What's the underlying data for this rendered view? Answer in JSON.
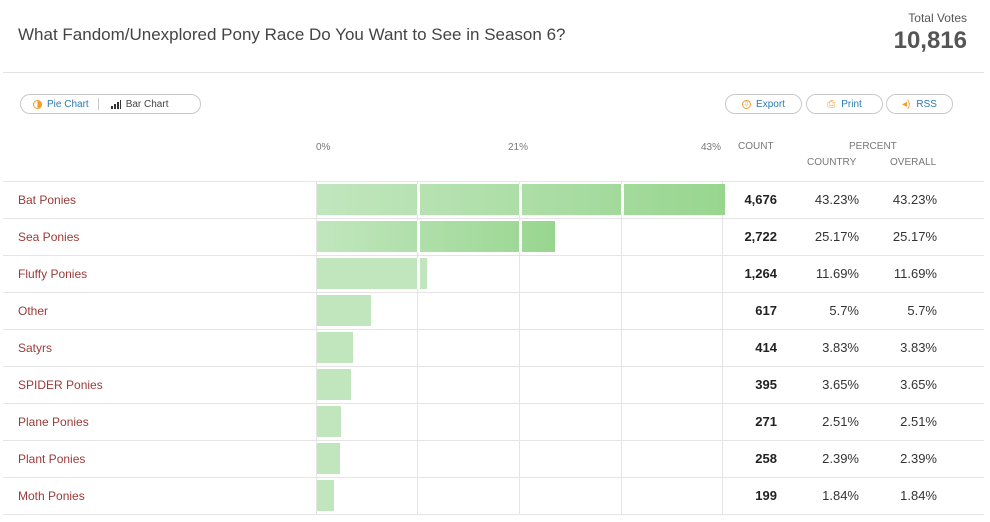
{
  "header": {
    "title": "What Fandom/Unexplored Pony Race Do You Want to See in Season 6?",
    "total_votes_label": "Total Votes",
    "total_votes": "10,816"
  },
  "toolbar": {
    "pie_label": "Pie Chart",
    "bar_label": "Bar Chart",
    "export_label": "Export",
    "print_label": "Print",
    "rss_label": "RSS"
  },
  "columns": {
    "count": "COUNT",
    "percent": "PERCENT",
    "country": "COUNTRY",
    "overall": "OVERALL"
  },
  "colors": {
    "bar": "#c1e6be",
    "bar_dark": "#98d68f",
    "label": "#9b3a38",
    "link": "#2a7ab0",
    "accent": "#f39c28"
  },
  "chart_data": {
    "type": "bar",
    "orientation": "horizontal",
    "axis_ticks": [
      "0%",
      "21%",
      "43%"
    ],
    "xlim": [
      0,
      43
    ],
    "grid": true,
    "categories": [
      "Bat Ponies",
      "Sea Ponies",
      "Fluffy Ponies",
      "Other",
      "Satyrs",
      "SPIDER Ponies",
      "Plane Ponies",
      "Plant Ponies",
      "Moth Ponies"
    ],
    "values": [
      43.23,
      25.17,
      11.69,
      5.7,
      3.83,
      3.65,
      2.51,
      2.39,
      1.84
    ],
    "rows": [
      {
        "label": "Bat Ponies",
        "count": "4,676",
        "country": "43.23%",
        "overall": "43.23%"
      },
      {
        "label": "Sea Ponies",
        "count": "2,722",
        "country": "25.17%",
        "overall": "25.17%"
      },
      {
        "label": "Fluffy Ponies",
        "count": "1,264",
        "country": "11.69%",
        "overall": "11.69%"
      },
      {
        "label": "Other",
        "count": "617",
        "country": "5.7%",
        "overall": "5.7%"
      },
      {
        "label": "Satyrs",
        "count": "414",
        "country": "3.83%",
        "overall": "3.83%"
      },
      {
        "label": "SPIDER Ponies",
        "count": "395",
        "country": "3.65%",
        "overall": "3.65%"
      },
      {
        "label": "Plane Ponies",
        "count": "271",
        "country": "2.51%",
        "overall": "2.51%"
      },
      {
        "label": "Plant Ponies",
        "count": "258",
        "country": "2.39%",
        "overall": "2.39%"
      },
      {
        "label": "Moth Ponies",
        "count": "199",
        "country": "1.84%",
        "overall": "1.84%"
      }
    ]
  }
}
